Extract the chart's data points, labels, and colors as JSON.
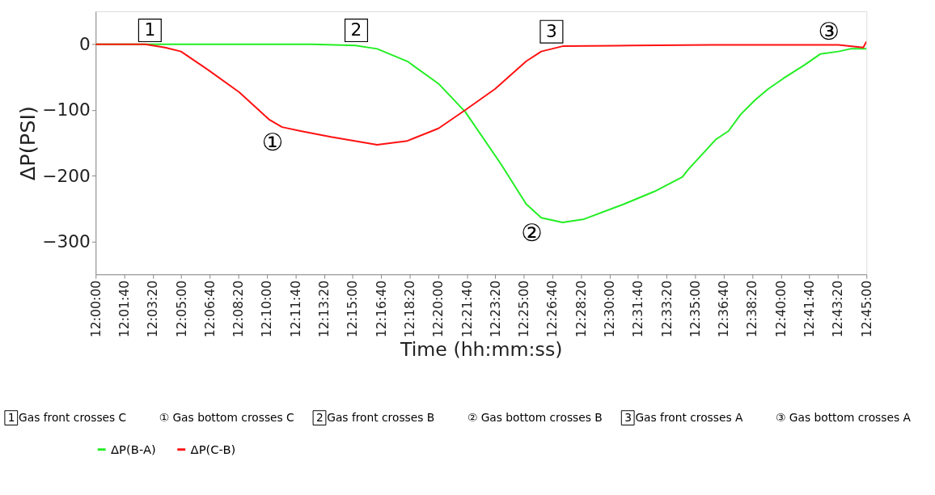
{
  "chart_data": {
    "type": "line",
    "xlabel": "Time (hh:mm:ss)",
    "ylabel": "ΔP(PSI)",
    "xlim": [
      12.0,
      12.75
    ],
    "ylim": [
      -350,
      50
    ],
    "yticks": [
      0,
      -100,
      -200,
      -300
    ],
    "xticks": [
      {
        "value": 12.0,
        "label": "12:00:00"
      },
      {
        "value": 12.02778,
        "label": "12:01:40"
      },
      {
        "value": 12.05556,
        "label": "12:03:20"
      },
      {
        "value": 12.08333,
        "label": "12:05:00"
      },
      {
        "value": 12.11111,
        "label": "12:06:40"
      },
      {
        "value": 12.13889,
        "label": "12:08:20"
      },
      {
        "value": 12.16667,
        "label": "12:10:00"
      },
      {
        "value": 12.19444,
        "label": "12:11:40"
      },
      {
        "value": 12.22222,
        "label": "12:13:20"
      },
      {
        "value": 12.25,
        "label": "12:15:00"
      },
      {
        "value": 12.27778,
        "label": "12:16:40"
      },
      {
        "value": 12.30556,
        "label": "12:18:20"
      },
      {
        "value": 12.33333,
        "label": "12:20:00"
      },
      {
        "value": 12.36111,
        "label": "12:21:40"
      },
      {
        "value": 12.38889,
        "label": "12:23:20"
      },
      {
        "value": 12.41667,
        "label": "12:25:00"
      },
      {
        "value": 12.44444,
        "label": "12:26:40"
      },
      {
        "value": 12.47222,
        "label": "12:28:20"
      },
      {
        "value": 12.5,
        "label": "12:30:00"
      },
      {
        "value": 12.52778,
        "label": "12:31:40"
      },
      {
        "value": 12.55556,
        "label": "12:33:20"
      },
      {
        "value": 12.58333,
        "label": "12:35:00"
      },
      {
        "value": 12.61111,
        "label": "12:36:40"
      },
      {
        "value": 12.63889,
        "label": "12:38:20"
      },
      {
        "value": 12.66667,
        "label": "12:40:00"
      },
      {
        "value": 12.69444,
        "label": "12:41:40"
      },
      {
        "value": 12.72222,
        "label": "12:43:20"
      },
      {
        "value": 12.75,
        "label": "12:45:00"
      }
    ],
    "series": [
      {
        "name": "ΔP(B-A)",
        "color": "#22ee22",
        "x": [
          12.0,
          12.0481,
          12.1333,
          12.2108,
          12.2528,
          12.2739,
          12.3033,
          12.3336,
          12.3597,
          12.3947,
          12.4189,
          12.4336,
          12.4544,
          12.4753,
          12.5142,
          12.5436,
          12.5708,
          12.5769,
          12.6033,
          12.6158,
          12.6275,
          12.6422,
          12.6544,
          12.6692,
          12.6903,
          12.705,
          12.7228,
          12.7344,
          12.75
        ],
        "values": [
          0,
          0,
          0,
          0,
          -2,
          -7,
          -26,
          -60,
          -103,
          -183,
          -243,
          -264,
          -271,
          -266,
          -243,
          -224,
          -202,
          -190,
          -145,
          -132,
          -107,
          -84,
          -68,
          -52,
          -31,
          -15,
          -11,
          -7,
          -7
        ]
      },
      {
        "name": "ΔP(C-B)",
        "color": "#ff1111",
        "x": [
          12.0,
          12.0481,
          12.0675,
          12.083,
          12.1094,
          12.1397,
          12.1692,
          12.1814,
          12.1994,
          12.2289,
          12.2739,
          12.3033,
          12.3336,
          12.3597,
          12.3886,
          12.4189,
          12.4336,
          12.4544,
          12.5211,
          12.5986,
          12.6764,
          12.7228,
          12.7469,
          12.75
        ],
        "values": [
          0,
          0,
          -5,
          -11,
          -39,
          -73,
          -115,
          -126,
          -132,
          -141,
          -153,
          -147,
          -128,
          -100,
          -68,
          -26,
          -11,
          -3,
          -2,
          -1,
          -1,
          -1,
          -5,
          4
        ]
      }
    ],
    "annotations": [
      {
        "text": "1",
        "x": 12.0528,
        "y": 21
      },
      {
        "text": "①",
        "x": 12.1814,
        "y": -126
      },
      {
        "text": "2",
        "x": 12.2536,
        "y": 21
      },
      {
        "text": "②",
        "x": 12.4336,
        "y": -264
      },
      {
        "text": "3",
        "x": 12.4436,
        "y": 19
      },
      {
        "text": "③",
        "x": 12.7228,
        "y": -1
      },
      "1 Gas front crosses C",
      "① Gas bottom crosses C",
      "2 Gas front crosses B",
      "② Gas bottom crosses B",
      "3 Gas front crosses A",
      "③ Gas bottom crosses A"
    ],
    "legend": "bottom",
    "grid": false,
    "line_style": "solid",
    "marker": "none"
  }
}
